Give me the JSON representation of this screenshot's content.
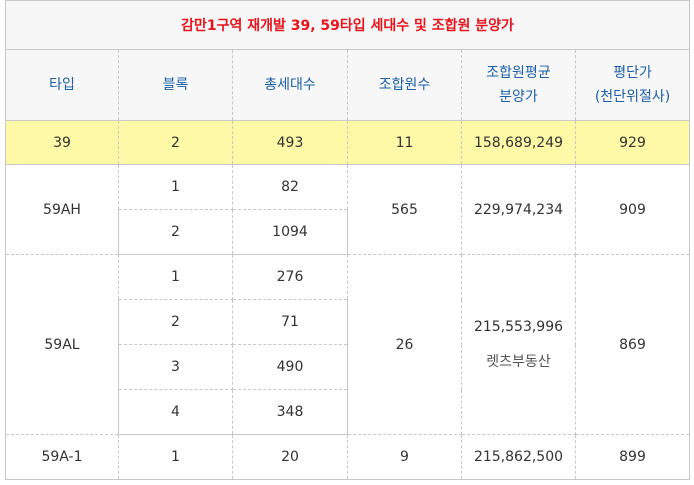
{
  "title": "감만1구역 재개발 39, 59타입 세대수 및 조합원 분양가",
  "headers": {
    "type": "타입",
    "block": "블록",
    "total_households": "총세대수",
    "members": "조합원수",
    "avg_price_line1": "조합원평균",
    "avg_price_line2": "분양가",
    "per_pyeong_line1": "평단가",
    "per_pyeong_line2": "(천단위절사)"
  },
  "groups": [
    {
      "type": "39",
      "members": "11",
      "avg_price": "158,689,249",
      "per_pyeong": "929",
      "rows": [
        {
          "block": "2",
          "households": "493"
        }
      ]
    },
    {
      "type": "59AH",
      "members": "565",
      "avg_price": "229,974,234",
      "per_pyeong": "909",
      "rows": [
        {
          "block": "1",
          "households": "82"
        },
        {
          "block": "2",
          "households": "1094"
        }
      ]
    },
    {
      "type": "59AL",
      "members": "26",
      "avg_price": "215,553,996",
      "per_pyeong": "869",
      "watermark": "렛츠부동산",
      "rows": [
        {
          "block": "1",
          "households": "276"
        },
        {
          "block": "2",
          "households": "71"
        },
        {
          "block": "3",
          "households": "490"
        },
        {
          "block": "4",
          "households": "348"
        }
      ]
    },
    {
      "type": "59A-1",
      "members": "9",
      "avg_price": "215,862,500",
      "per_pyeong": "899",
      "rows": [
        {
          "block": "1",
          "households": "20"
        }
      ]
    }
  ]
}
